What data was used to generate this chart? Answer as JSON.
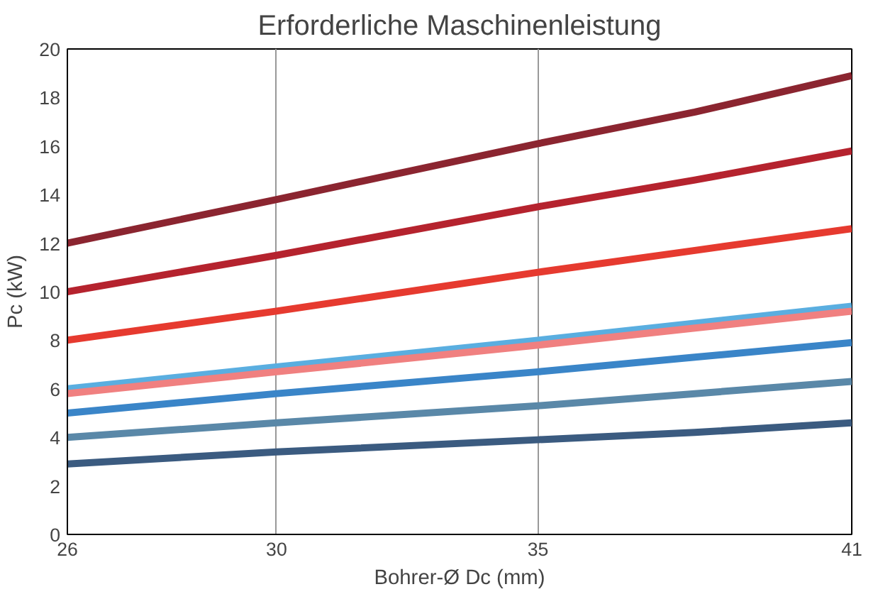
{
  "chart_data": {
    "type": "line",
    "title": "Erforderliche Maschinenleistung",
    "xlabel": "Bohrer-Ø Dc (mm)",
    "ylabel": "Pc (kW)",
    "xlim": [
      26,
      41
    ],
    "xticks": [
      26,
      30,
      35,
      41
    ],
    "ylim": [
      0,
      20
    ],
    "yticks": [
      0,
      2,
      4,
      6,
      8,
      10,
      12,
      14,
      16,
      18,
      20
    ],
    "grid": "x",
    "line_style": "solid",
    "x": [
      26,
      30,
      35,
      38,
      41
    ],
    "series": [
      {
        "color": "#8b2530",
        "values": [
          12,
          13.8,
          16.1,
          17.4,
          18.9
        ]
      },
      {
        "color": "#b5232e",
        "values": [
          10,
          11.5,
          13.5,
          14.6,
          15.8
        ]
      },
      {
        "color": "#e63a2f",
        "values": [
          8,
          9.2,
          10.8,
          11.7,
          12.6
        ]
      },
      {
        "color": "#5aaee0",
        "values": [
          6,
          6.9,
          8.0,
          8.7,
          9.4
        ]
      },
      {
        "color": "#f08080",
        "values": [
          5.8,
          6.7,
          7.8,
          8.5,
          9.2
        ]
      },
      {
        "color": "#3a85c8",
        "values": [
          5,
          5.8,
          6.7,
          7.3,
          7.9
        ]
      },
      {
        "color": "#5a88a8",
        "values": [
          4,
          4.6,
          5.3,
          5.8,
          6.3
        ]
      },
      {
        "color": "#3b5b80",
        "values": [
          2.9,
          3.4,
          3.9,
          4.2,
          4.6
        ]
      }
    ]
  }
}
